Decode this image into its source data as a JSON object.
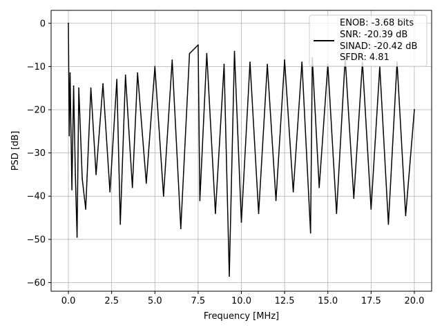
{
  "chart_data": {
    "type": "line",
    "title": "",
    "xlabel": "Frequency [MHz]",
    "ylabel": "PSD [dB]",
    "xlim": [
      -1.0,
      21.0
    ],
    "ylim": [
      -62.0,
      3.0
    ],
    "xticks": [
      0.0,
      2.5,
      5.0,
      7.5,
      10.0,
      12.5,
      15.0,
      17.5,
      20.0
    ],
    "xtick_labels": [
      "0.0",
      "2.5",
      "5.0",
      "7.5",
      "10.0",
      "12.5",
      "15.0",
      "17.5",
      "20.0"
    ],
    "yticks": [
      0,
      -10,
      -20,
      -30,
      -40,
      -50,
      -60
    ],
    "ytick_labels": [
      "0",
      "−10",
      "−20",
      "−30",
      "−40",
      "−50",
      "−60"
    ],
    "grid": true,
    "legend_position": "top-right",
    "legend_lines": [
      "ENOB: -3.68 bits",
      "SNR: -20.39 dB",
      "SINAD: -20.42 dB",
      "SFDR: 4.81"
    ],
    "series": [
      {
        "color": "#000000",
        "x": [
          0.0,
          0.05,
          0.1,
          0.2,
          0.3,
          0.4,
          0.5,
          0.6,
          0.8,
          1.0,
          1.3,
          1.6,
          2.0,
          2.4,
          2.8,
          3.0,
          3.3,
          3.7,
          4.0,
          4.5,
          5.0,
          5.5,
          6.0,
          6.5,
          7.0,
          7.5,
          7.6,
          8.0,
          8.5,
          9.0,
          9.3,
          9.6,
          10.0,
          10.5,
          11.0,
          11.5,
          12.0,
          12.5,
          13.0,
          13.5,
          14.0,
          14.1,
          14.5,
          15.0,
          15.5,
          16.0,
          16.5,
          17.0,
          17.5,
          18.0,
          18.5,
          19.0,
          19.5,
          20.0
        ],
        "y": [
          0.0,
          -26.0,
          -11.5,
          -38.5,
          -14.5,
          -35.0,
          -49.5,
          -15.0,
          -36.0,
          -43.0,
          -15.0,
          -35.0,
          -14.0,
          -39.0,
          -13.0,
          -46.5,
          -12.0,
          -38.0,
          -11.5,
          -37.0,
          -10.0,
          -40.0,
          -8.5,
          -47.5,
          -7.0,
          -5.0,
          -41.0,
          -7.0,
          -44.0,
          -9.5,
          -58.5,
          -6.5,
          -46.0,
          -9.0,
          -44.0,
          -9.5,
          -41.0,
          -8.5,
          -39.0,
          -9.0,
          -48.5,
          -8.0,
          -38.0,
          -9.5,
          -44.0,
          -8.0,
          -40.5,
          -9.0,
          -43.0,
          -10.0,
          -46.5,
          -9.0,
          -44.5,
          -20.0
        ]
      }
    ]
  }
}
